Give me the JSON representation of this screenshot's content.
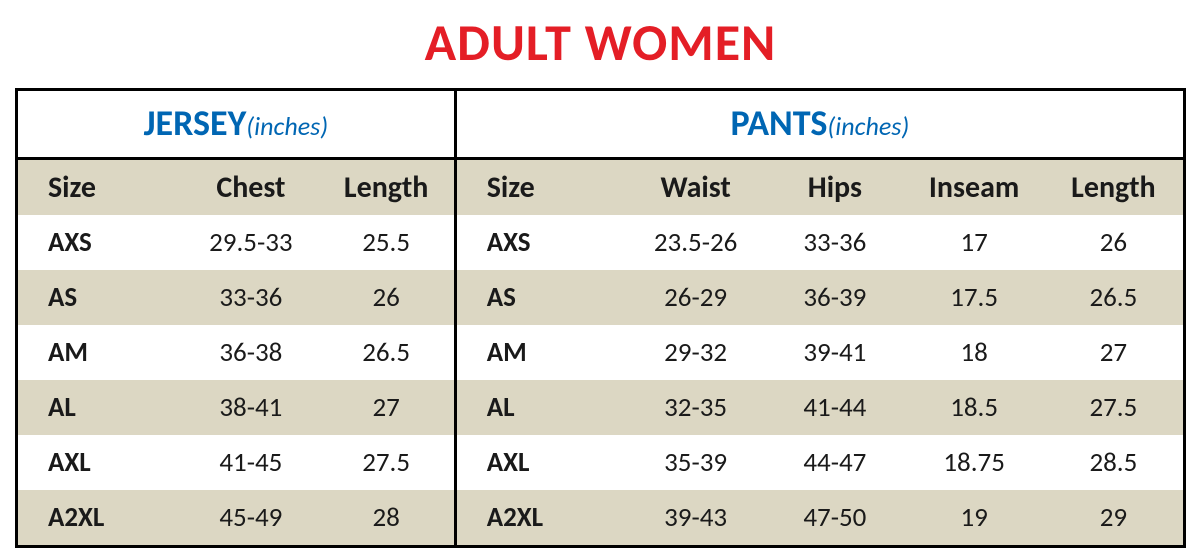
{
  "title": "ADULT WOMEN",
  "sections": {
    "jersey": {
      "name": "JERSEY",
      "unit": "(inches)",
      "columns": [
        "Size",
        "Chest",
        "Length"
      ],
      "rows": [
        [
          "AXS",
          "29.5-33",
          "25.5"
        ],
        [
          "AS",
          "33-36",
          "26"
        ],
        [
          "AM",
          "36-38",
          "26.5"
        ],
        [
          "AL",
          "38-41",
          "27"
        ],
        [
          "AXL",
          "41-45",
          "27.5"
        ],
        [
          "A2XL",
          "45-49",
          "28"
        ]
      ]
    },
    "pants": {
      "name": "PANTS",
      "unit": "(inches)",
      "columns": [
        "Size",
        "Waist",
        "Hips",
        "Inseam",
        "Length"
      ],
      "rows": [
        [
          "AXS",
          "23.5-26",
          "33-36",
          "17",
          "26"
        ],
        [
          "AS",
          "26-29",
          "36-39",
          "17.5",
          "26.5"
        ],
        [
          "AM",
          "29-32",
          "39-41",
          "18",
          "27"
        ],
        [
          "AL",
          "32-35",
          "41-44",
          "18.5",
          "27.5"
        ],
        [
          "AXL",
          "35-39",
          "44-47",
          "18.75",
          "28.5"
        ],
        [
          "A2XL",
          "39-43",
          "47-50",
          "19",
          "29"
        ]
      ]
    }
  },
  "colors": {
    "title": "#e41e26",
    "section_name": "#0066b3",
    "band_alt": "#dcd7c3",
    "band_base": "#ffffff",
    "border": "#000000"
  }
}
